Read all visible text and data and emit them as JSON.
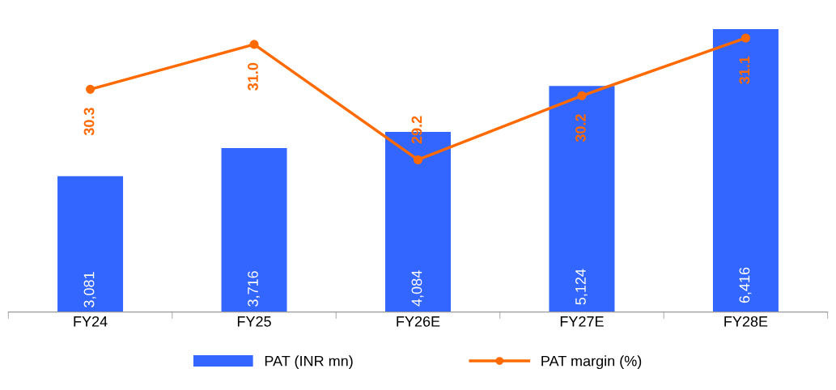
{
  "chart_data": {
    "type": "bar",
    "categories": [
      "FY24",
      "FY25",
      "FY26E",
      "FY27E",
      "FY28E"
    ],
    "series": [
      {
        "name": "PAT (INR mn)",
        "type": "bar",
        "color": "#3366ff",
        "values": [
          3081,
          3716,
          4084,
          5124,
          6416
        ],
        "value_labels": [
          "3,081",
          "3,716",
          "4,084",
          "5,124",
          "6,416"
        ]
      },
      {
        "name": "PAT margin (%)",
        "type": "line",
        "axis": "y2",
        "color": "#ff6a00",
        "marker": "circle",
        "values": [
          30.3,
          31.0,
          29.2,
          30.2,
          31.1
        ],
        "value_labels": [
          "30.3",
          "31.0",
          "29.2",
          "30.2",
          "31.1"
        ]
      }
    ],
    "tick_labels": "x",
    "grid": false,
    "legend": "bottom"
  }
}
